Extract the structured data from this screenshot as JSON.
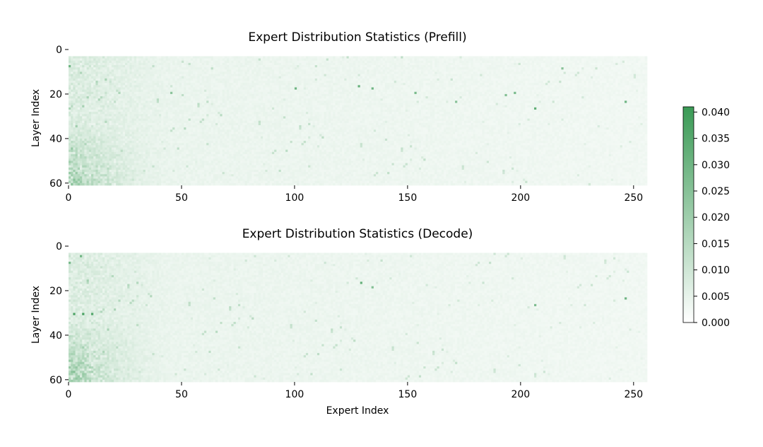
{
  "chart_data": [
    {
      "type": "heatmap",
      "title": "Expert Distribution Statistics (Prefill)",
      "xlabel": "",
      "ylabel": "Layer Index",
      "x_range": [
        0,
        256
      ],
      "y_range": [
        0,
        61
      ],
      "x_ticks": [
        "0",
        "50",
        "100",
        "150",
        "200",
        "250"
      ],
      "x_tick_values": [
        0,
        50,
        100,
        150,
        200,
        250
      ],
      "y_ticks": [
        "0",
        "20",
        "40",
        "60"
      ],
      "y_tick_values": [
        0,
        20,
        40,
        60
      ],
      "first_layer_with_data": 3,
      "hotspots": [
        {
          "layer": 17,
          "expert": 100,
          "value": 0.03
        },
        {
          "layer": 16,
          "expert": 128,
          "value": 0.032
        },
        {
          "layer": 17,
          "expert": 134,
          "value": 0.03
        },
        {
          "layer": 19,
          "expert": 153,
          "value": 0.028
        },
        {
          "layer": 23,
          "expert": 171,
          "value": 0.025
        },
        {
          "layer": 20,
          "expert": 193,
          "value": 0.026
        },
        {
          "layer": 19,
          "expert": 197,
          "value": 0.028
        },
        {
          "layer": 26,
          "expert": 206,
          "value": 0.033
        },
        {
          "layer": 23,
          "expert": 246,
          "value": 0.03
        },
        {
          "layer": 8,
          "expert": 218,
          "value": 0.025
        },
        {
          "layer": 7,
          "expert": 0,
          "value": 0.03
        },
        {
          "layer": 19,
          "expert": 45,
          "value": 0.024
        }
      ],
      "value_range": [
        0,
        0.041
      ]
    },
    {
      "type": "heatmap",
      "title": "Expert Distribution Statistics (Decode)",
      "xlabel": "Expert Index",
      "ylabel": "Layer Index",
      "x_range": [
        0,
        256
      ],
      "y_range": [
        0,
        61
      ],
      "x_ticks": [
        "0",
        "50",
        "100",
        "150",
        "200",
        "250"
      ],
      "x_tick_values": [
        0,
        50,
        100,
        150,
        200,
        250
      ],
      "y_ticks": [
        "0",
        "20",
        "40",
        "60"
      ],
      "y_tick_values": [
        0,
        20,
        40,
        60
      ],
      "first_layer_with_data": 3,
      "hotspots": [
        {
          "layer": 30,
          "expert": 2,
          "value": 0.038
        },
        {
          "layer": 30,
          "expert": 6,
          "value": 0.038
        },
        {
          "layer": 30,
          "expert": 10,
          "value": 0.036
        },
        {
          "layer": 16,
          "expert": 129,
          "value": 0.032
        },
        {
          "layer": 18,
          "expert": 134,
          "value": 0.026
        },
        {
          "layer": 23,
          "expert": 246,
          "value": 0.03
        },
        {
          "layer": 26,
          "expert": 206,
          "value": 0.027
        },
        {
          "layer": 4,
          "expert": 5,
          "value": 0.03
        },
        {
          "layer": 7,
          "expert": 0,
          "value": 0.028
        }
      ],
      "value_range": [
        0,
        0.041
      ]
    }
  ],
  "colorbar": {
    "min": 0.0,
    "max": 0.041,
    "ticks": [
      "0.000",
      "0.005",
      "0.010",
      "0.015",
      "0.020",
      "0.025",
      "0.030",
      "0.035",
      "0.040"
    ],
    "tick_values": [
      0.0,
      0.005,
      0.01,
      0.015,
      0.02,
      0.025,
      0.03,
      0.035,
      0.04
    ],
    "color_low": "#ffffff",
    "color_high": "#3a9a55"
  }
}
